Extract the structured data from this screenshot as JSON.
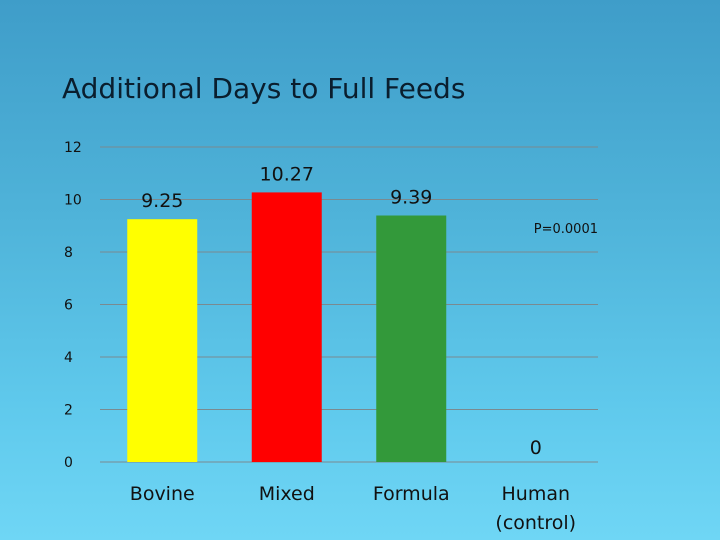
{
  "slide": {
    "title": "Additional Days to Full Feeds"
  },
  "colors": {
    "background": "#4fb3d9",
    "grid": "#7a8a90"
  },
  "chart_data": {
    "type": "bar",
    "title": "Additional Days to Full Feeds",
    "xlabel": "",
    "ylabel": "",
    "ylim": [
      0,
      12
    ],
    "yticks": [
      0,
      2,
      4,
      6,
      8,
      10,
      12
    ],
    "grid": true,
    "categories": [
      "Bovine",
      "Mixed",
      "Formula",
      "Human\n(control)"
    ],
    "values": [
      9.25,
      10.27,
      9.39,
      0
    ],
    "value_labels": [
      "9.25",
      "10.27",
      "9.39",
      "0"
    ],
    "colors": [
      "#ffff00",
      "#ff0000",
      "#33993a",
      "#888888"
    ],
    "annotation": "P=0.0001"
  }
}
